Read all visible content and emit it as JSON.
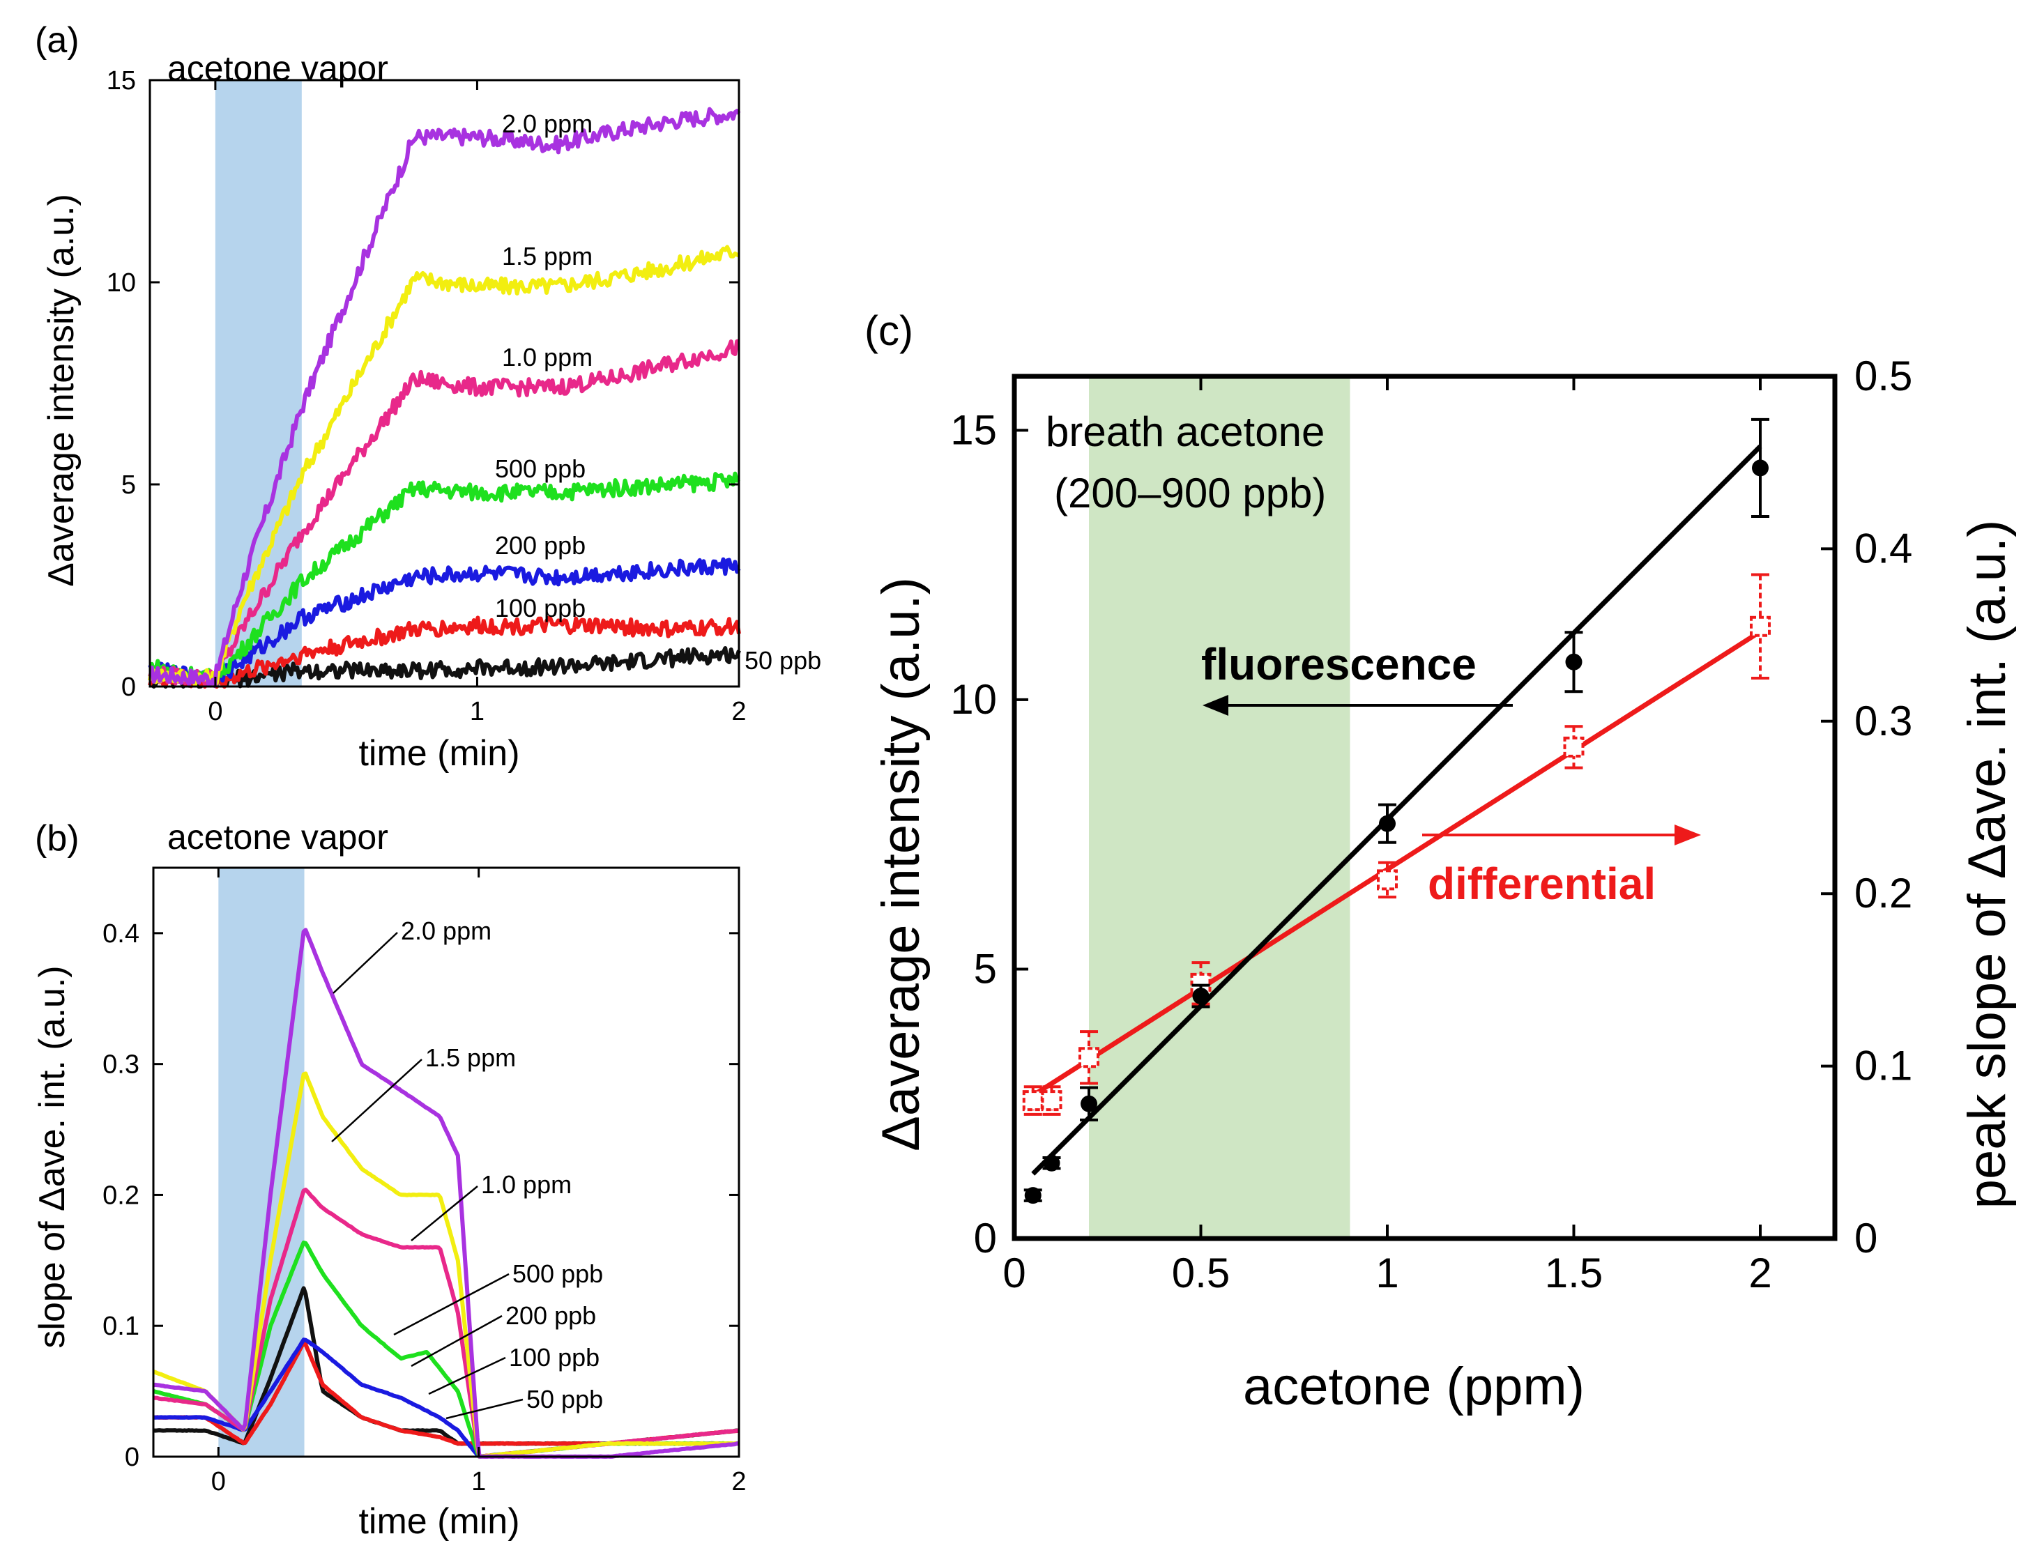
{
  "chart_data": [
    {
      "panel": "(a)",
      "type": "line",
      "annotation": "acetone vapor",
      "exposure_window_min": [
        0.0,
        0.33
      ],
      "xlabel": "time (min)",
      "ylabel": "Δaverage intensity (a.u.)",
      "xlim": [
        -0.25,
        2.0
      ],
      "ylim": [
        0,
        15
      ],
      "xticks": [
        0,
        1,
        2
      ],
      "yticks": [
        0,
        5,
        10,
        15
      ],
      "series": [
        {
          "name": "2.0 ppm",
          "color": "#a832e0",
          "x": [
            -0.25,
            0,
            0.1,
            0.33,
            0.76,
            1.0,
            1.3,
            1.5,
            1.75,
            2.0
          ],
          "y": [
            0.3,
            0.2,
            2.5,
            6.9,
            13.6,
            13.6,
            13.4,
            13.7,
            14.0,
            14.2
          ]
        },
        {
          "name": "1.5 ppm",
          "color": "#f2ee10",
          "x": [
            -0.25,
            0,
            0.1,
            0.33,
            0.76,
            1.0,
            1.3,
            1.5,
            1.75,
            2.0
          ],
          "y": [
            0.3,
            0.2,
            2.0,
            5.2,
            10.1,
            9.9,
            9.9,
            10.1,
            10.4,
            10.8
          ]
        },
        {
          "name": "1.0 ppm",
          "color": "#e8288a",
          "x": [
            -0.25,
            0,
            0.1,
            0.33,
            0.76,
            1.0,
            1.3,
            1.5,
            1.75,
            2.0
          ],
          "y": [
            0.3,
            0.2,
            1.4,
            3.8,
            7.6,
            7.4,
            7.4,
            7.6,
            8.0,
            8.4
          ]
        },
        {
          "name": "500 ppb",
          "color": "#1ee01e",
          "x": [
            -0.25,
            0,
            0.1,
            0.33,
            0.76,
            1.0,
            1.3,
            1.5,
            1.75,
            2.0
          ],
          "y": [
            0.5,
            0.2,
            0.9,
            2.6,
            4.9,
            4.8,
            4.8,
            4.9,
            5.0,
            5.1
          ]
        },
        {
          "name": "200 ppb",
          "color": "#1a1ae0",
          "x": [
            -0.25,
            0,
            0.1,
            0.33,
            0.76,
            1.0,
            1.3,
            1.5,
            1.75,
            2.0
          ],
          "y": [
            0.4,
            0.2,
            0.6,
            1.7,
            2.7,
            2.8,
            2.7,
            2.8,
            2.9,
            3.0
          ]
        },
        {
          "name": "100 ppb",
          "color": "#ee1a1a",
          "x": [
            -0.25,
            0,
            0.1,
            0.33,
            0.76,
            1.0,
            1.3,
            1.5,
            1.75,
            2.0
          ],
          "y": [
            0.2,
            0.1,
            0.3,
            0.8,
            1.4,
            1.5,
            1.5,
            1.5,
            1.4,
            1.5
          ]
        },
        {
          "name": "50 ppb",
          "color": "#111111",
          "x": [
            -0.25,
            0,
            0.1,
            0.33,
            0.76,
            1.0,
            1.3,
            1.5,
            1.75,
            2.0
          ],
          "y": [
            0.1,
            0.1,
            0.2,
            0.4,
            0.4,
            0.45,
            0.5,
            0.55,
            0.7,
            0.8
          ]
        }
      ]
    },
    {
      "panel": "(b)",
      "type": "line",
      "annotation": "acetone vapor",
      "exposure_window_min": [
        0.0,
        0.33
      ],
      "xlabel": "time (min)",
      "ylabel": "slope of Δave. int. (a.u.)",
      "xlim": [
        -0.25,
        2.0
      ],
      "ylim": [
        0,
        0.45
      ],
      "xticks": [
        0,
        1,
        2
      ],
      "yticks": [
        0,
        0.1,
        0.2,
        0.3,
        0.4
      ],
      "series": [
        {
          "name": "2.0 ppm",
          "color": "#a832e0",
          "x": [
            -0.25,
            -0.05,
            0.1,
            0.2,
            0.33,
            0.4,
            0.55,
            0.7,
            0.85,
            0.92,
            1.0,
            1.5,
            2.0
          ],
          "y": [
            0.055,
            0.05,
            0.02,
            0.2,
            0.405,
            0.37,
            0.3,
            0.28,
            0.26,
            0.23,
            0.0,
            0.0,
            0.01
          ]
        },
        {
          "name": "1.5 ppm",
          "color": "#f2ee10",
          "x": [
            -0.25,
            -0.05,
            0.1,
            0.2,
            0.33,
            0.4,
            0.55,
            0.7,
            0.85,
            0.92,
            1.0,
            1.5,
            2.0
          ],
          "y": [
            0.065,
            0.05,
            0.02,
            0.15,
            0.295,
            0.26,
            0.22,
            0.2,
            0.2,
            0.15,
            0.0,
            0.01,
            0.01
          ]
        },
        {
          "name": "1.0 ppm",
          "color": "#e8288a",
          "x": [
            -0.25,
            -0.05,
            0.1,
            0.2,
            0.33,
            0.4,
            0.55,
            0.7,
            0.85,
            0.92,
            1.0,
            1.5,
            2.0
          ],
          "y": [
            0.045,
            0.04,
            0.02,
            0.12,
            0.205,
            0.19,
            0.17,
            0.16,
            0.16,
            0.11,
            0.0,
            0.01,
            0.02
          ]
        },
        {
          "name": "500 ppb",
          "color": "#1ee01e",
          "x": [
            -0.25,
            -0.05,
            0.1,
            0.2,
            0.33,
            0.4,
            0.55,
            0.7,
            0.8,
            0.92,
            1.0,
            1.5,
            2.0
          ],
          "y": [
            0.05,
            0.04,
            0.02,
            0.1,
            0.165,
            0.14,
            0.1,
            0.075,
            0.08,
            0.05,
            0.0,
            0.01,
            0.01
          ]
        },
        {
          "name": "200 ppb",
          "color": "#1a1ae0",
          "x": [
            -0.25,
            -0.05,
            0.1,
            0.2,
            0.33,
            0.4,
            0.55,
            0.7,
            0.85,
            0.92,
            1.0,
            1.5,
            2.0
          ],
          "y": [
            0.03,
            0.03,
            0.02,
            0.05,
            0.09,
            0.08,
            0.055,
            0.045,
            0.03,
            0.02,
            0.0,
            0.01,
            0.01
          ]
        },
        {
          "name": "100 ppb",
          "color": "#ee1a1a",
          "x": [
            -0.25,
            -0.05,
            0.1,
            0.2,
            0.33,
            0.4,
            0.55,
            0.7,
            0.85,
            0.92,
            1.0,
            1.5,
            2.0
          ],
          "y": [
            0.03,
            0.03,
            0.01,
            0.04,
            0.088,
            0.055,
            0.03,
            0.02,
            0.015,
            0.01,
            0.01,
            0.01,
            0.02
          ]
        },
        {
          "name": "50 ppb",
          "color": "#111111",
          "x": [
            -0.25,
            -0.05,
            0.1,
            0.2,
            0.33,
            0.4,
            0.55,
            0.7,
            0.85,
            0.92,
            1.0,
            1.5,
            2.0
          ],
          "y": [
            0.02,
            0.02,
            0.01,
            0.06,
            0.13,
            0.05,
            0.03,
            0.02,
            0.02,
            0.01,
            0.01,
            0.01,
            0.02
          ]
        }
      ]
    },
    {
      "panel": "(c)",
      "type": "scatter",
      "annotation": [
        "breath acetone",
        "(200–900 ppb)"
      ],
      "highlight_band_ppm": [
        0.2,
        0.9
      ],
      "xlabel": "acetone (ppm)",
      "ylabel": "Δaverage intensity (a.u.)",
      "y2label": "peak slope of Δave. int. (a.u.)",
      "xlim": [
        0,
        2.2
      ],
      "ylim": [
        0,
        16
      ],
      "y2lim": [
        0,
        0.5
      ],
      "xticks": [
        "0",
        "0.5",
        "1",
        "1.5",
        "2"
      ],
      "yticks": [
        "0",
        "5",
        "10",
        "15"
      ],
      "y2ticks": [
        "0",
        "0.1",
        "0.2",
        "0.3",
        "0.4",
        "0.5"
      ],
      "series": [
        {
          "name": "fluorescence",
          "axis": "left",
          "color": "#000000",
          "marker": "filled-circle",
          "x": [
            0.05,
            0.1,
            0.2,
            0.5,
            1.0,
            1.5,
            2.0
          ],
          "y": [
            0.8,
            1.4,
            2.5,
            4.5,
            7.7,
            10.7,
            14.3
          ],
          "err": [
            0.1,
            0.1,
            0.3,
            0.2,
            0.35,
            0.55,
            0.9
          ],
          "fit": {
            "x": [
              0.05,
              2.0
            ],
            "y": [
              1.2,
              14.7
            ]
          }
        },
        {
          "name": "differential",
          "axis": "right",
          "color": "#ee1a1a",
          "marker": "open-square",
          "x": [
            0.05,
            0.1,
            0.2,
            0.5,
            1.0,
            1.5,
            2.0
          ],
          "y": [
            0.08,
            0.08,
            0.105,
            0.148,
            0.208,
            0.285,
            0.355
          ],
          "err": [
            0.008,
            0.008,
            0.015,
            0.012,
            0.01,
            0.012,
            0.03
          ],
          "fit": {
            "x": [
              0.05,
              2.0
            ],
            "y": [
              0.083,
              0.352
            ]
          }
        }
      ],
      "arrows": {
        "fluorescence": "left",
        "differential": "right"
      }
    }
  ]
}
